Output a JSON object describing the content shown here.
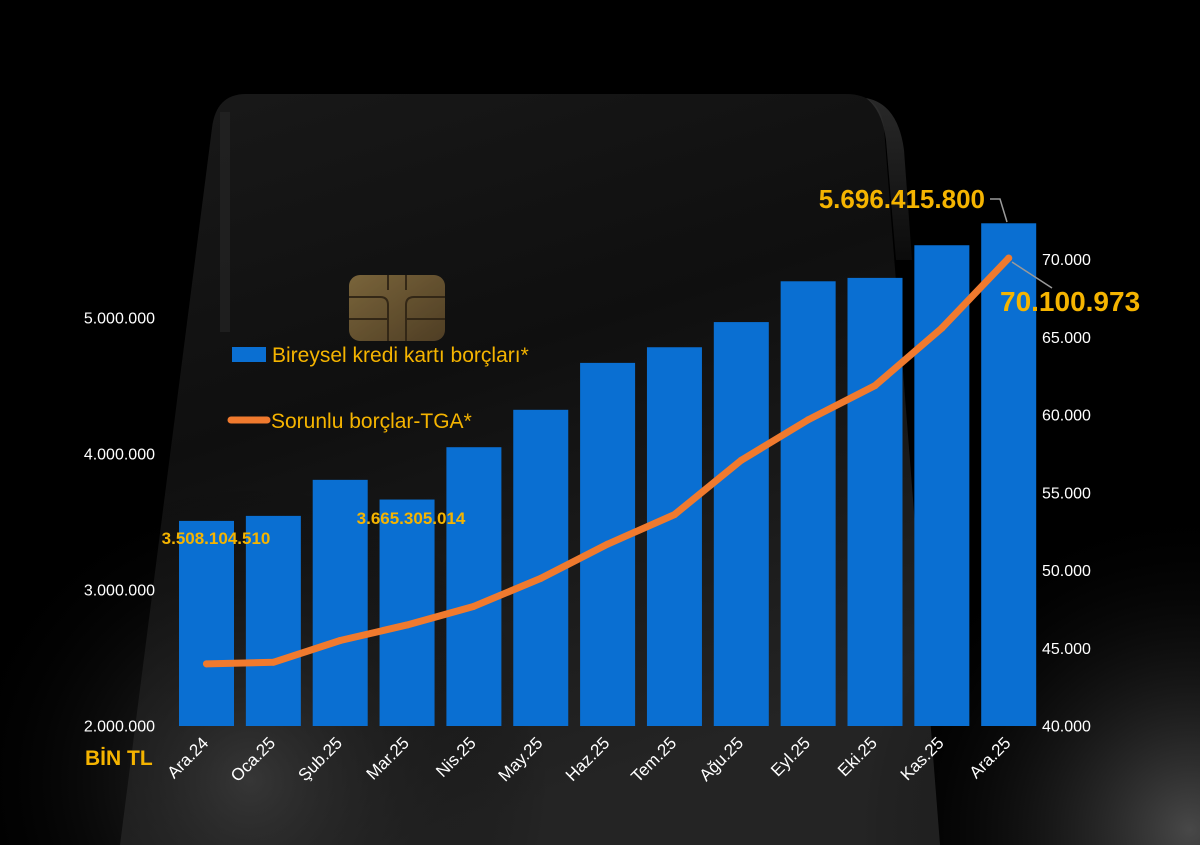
{
  "chart_data": {
    "type": "bar",
    "categories": [
      "Ara.24",
      "Oca.25",
      "Şub.25",
      "Mar.25",
      "Nis.25",
      "May.25",
      "Haz.25",
      "Tem.25",
      "Ağu.25",
      "Eyl.25",
      "Eki.25",
      "Kas.25",
      "Ara.25"
    ],
    "series": [
      {
        "name": "Bireysel kredi kartı borçları*",
        "type": "bar",
        "y_axis": "left",
        "color": "#0a6fd2",
        "values": [
          3508104.51,
          3545000,
          3810000,
          3665305.014,
          4050000,
          4325000,
          4670000,
          4785000,
          4970000,
          5270000,
          5295000,
          5535000,
          5696415.8
        ]
      },
      {
        "name": "Sorunlu borçlar-TGA*",
        "type": "line",
        "y_axis": "right",
        "color": "#f07a2e",
        "values": [
          44000,
          44100,
          45500,
          46500,
          47700,
          49500,
          51700,
          53600,
          57100,
          59700,
          61900,
          65600,
          70100.973
        ]
      }
    ],
    "y_left": {
      "label": "BİN TL",
      "ylim": [
        2000000,
        6000000
      ],
      "ticks": [
        2000000,
        3000000,
        4000000,
        5000000
      ],
      "tick_labels": [
        "2.000.000",
        "3.000.000",
        "4.000.000",
        "5.000.000"
      ]
    },
    "y_right": {
      "ylim": [
        40000,
        75000
      ],
      "ticks": [
        40000,
        45000,
        50000,
        55000,
        60000,
        65000,
        70000
      ],
      "tick_labels": [
        "40.000",
        "45.000",
        "50.000",
        "55.000",
        "60.000",
        "65.000",
        "70.000"
      ]
    },
    "data_labels": [
      {
        "series_index": 0,
        "category_index": 0,
        "text": "3.508.104.510"
      },
      {
        "series_index": 0,
        "category_index": 3,
        "text": "3.665.305.014"
      },
      {
        "series_index": 0,
        "category_index": 12,
        "text": "5.696.415.800"
      },
      {
        "series_index": 1,
        "category_index": 12,
        "text": "70.100.973"
      }
    ],
    "legend": {
      "placement": "upper-left"
    },
    "grid": false
  },
  "colors": {
    "background": "#000000",
    "label_gold": "#f5b400",
    "tick_text": "#ffffff",
    "leader_line": "#9a9a9a"
  }
}
